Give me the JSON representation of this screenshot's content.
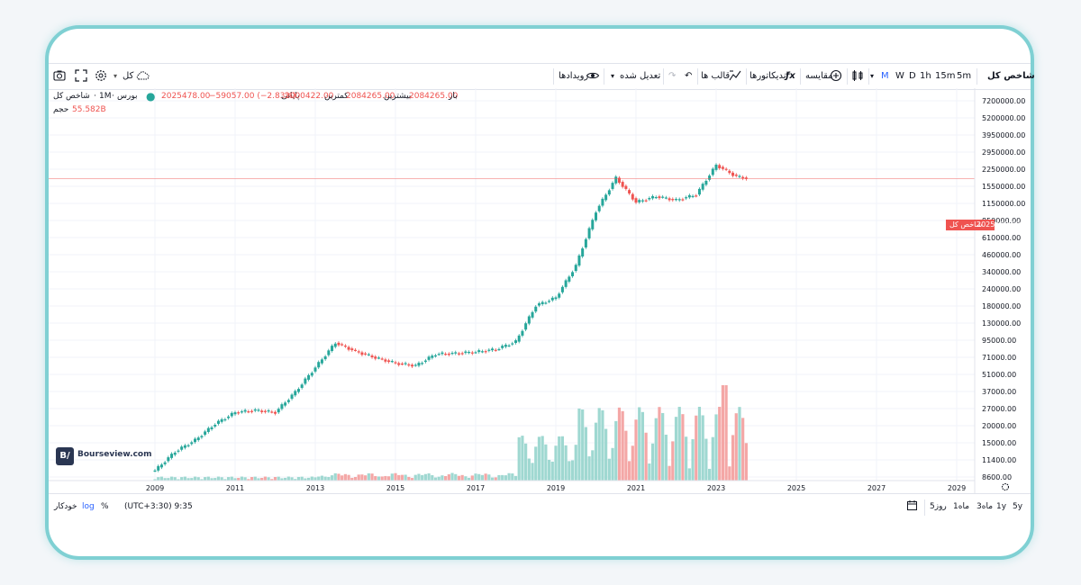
{
  "toolbar": {
    "symbol": "شاخص کل",
    "timeframes": [
      "5m",
      "15m",
      "1h",
      "D",
      "W",
      "M"
    ],
    "active_timeframe": "M",
    "compare": "مقایسه",
    "indicators": "اندیکاتورها",
    "templates": "قالب ها",
    "adjusted": "تعدیل شده",
    "events": "رویدادها",
    "layout_label": "کل"
  },
  "legend": {
    "symbol": "شاخص کل",
    "interval": "1M",
    "exchange": "بورس",
    "open_label": "باز",
    "open": "2084265.00",
    "high_label": "بیشترین",
    "high": "2084265.00",
    "low_label": "کمترین",
    "low": "2000422.00",
    "close_label": "پایانی",
    "close": "2025478.00",
    "change": "−59057.00 (−2.83%)",
    "volume_label": "حجم",
    "volume": "55.582B"
  },
  "price_tag": {
    "label": "شاخص کل",
    "value": "2025478.00"
  },
  "watermark": {
    "badge": "B/",
    "text": "Bourseview.com"
  },
  "bottom": {
    "ranges": [
      "5y",
      "1y",
      "3ماه",
      "1ماه",
      "5روز"
    ],
    "timezone": "(UTC+3:30) 9:35",
    "percent": "%",
    "log": "log",
    "auto": "خودکار"
  },
  "colors": {
    "up": "#26a69a",
    "down": "#ef5350",
    "up_volume": "#9fd8d1",
    "down_volume": "#f4a7a6",
    "frame": "#7fd0d3"
  },
  "chart_data": {
    "type": "candlestick",
    "scale": "log",
    "title": "",
    "x_ticks": [
      "2009",
      "2011",
      "2013",
      "2015",
      "2017",
      "2019",
      "2021",
      "2023",
      "2025",
      "2027",
      "2029"
    ],
    "y_ticks": [
      "7200000.00",
      "5200000.00",
      "3950000.00",
      "2950000.00",
      "2250000.00",
      "1550000.00",
      "1150000.00",
      "850000.00",
      "610000.00",
      "460000.00",
      "340000.00",
      "240000.00",
      "180000.00",
      "130000.00",
      "95000.00",
      "71000.00",
      "51000.00",
      "37000.00",
      "27000.00",
      "20000.00",
      "15000.00",
      "11400.00",
      "8600.00"
    ],
    "last_price": 2025478,
    "series": [
      {
        "name": "شاخص کل",
        "x": [
          "2009",
          "2009.5",
          "2010",
          "2010.5",
          "2011",
          "2011.5",
          "2012",
          "2012.5",
          "2013",
          "2013.5",
          "2014",
          "2014.5",
          "2015",
          "2015.5",
          "2016",
          "2016.5",
          "2017",
          "2017.5",
          "2018",
          "2018.5",
          "2019",
          "2019.5",
          "2020",
          "2020.5",
          "2021",
          "2021.5",
          "2022",
          "2022.5",
          "2023",
          "2023.5",
          "2023.8"
        ],
        "close": [
          8800,
          12500,
          15500,
          21000,
          26000,
          27000,
          26000,
          38000,
          60000,
          95000,
          81000,
          72000,
          65000,
          62000,
          77000,
          78000,
          80000,
          84000,
          97000,
          190000,
          220000,
          400000,
          1100000,
          2050000,
          1300000,
          1450000,
          1350000,
          1500000,
          2600000,
          2100000,
          2025478
        ]
      }
    ]
  }
}
